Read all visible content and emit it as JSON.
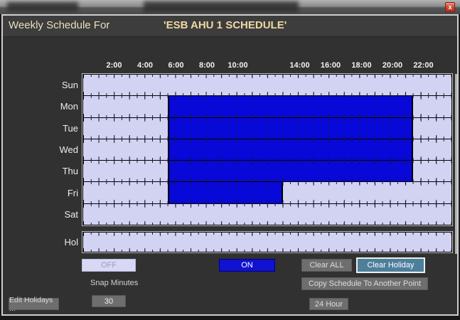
{
  "window": {
    "close_button": "x"
  },
  "header": {
    "label": "Weekly Schedule For",
    "schedule_name": "'ESB AHU 1 SCHEDULE'"
  },
  "chart_data": {
    "type": "weekly-on-off-schedule",
    "title": "'ESB AHU 1 SCHEDULE'",
    "x_axis": {
      "unit": "hour",
      "range_hours": [
        0,
        24
      ],
      "tick_every_minutes": 30,
      "labels": [
        {
          "hour": 2,
          "text": "2:00"
        },
        {
          "hour": 4,
          "text": "4:00"
        },
        {
          "hour": 6,
          "text": "6:00"
        },
        {
          "hour": 8,
          "text": "8:00"
        },
        {
          "hour": 10,
          "text": "10:00"
        },
        {
          "hour": 14,
          "text": "14:00"
        },
        {
          "hour": 16,
          "text": "16:00"
        },
        {
          "hour": 18,
          "text": "18:00"
        },
        {
          "hour": 20,
          "text": "20:00"
        },
        {
          "hour": 22,
          "text": "22:00"
        }
      ]
    },
    "days": [
      "Sun",
      "Mon",
      "Tue",
      "Wed",
      "Thu",
      "Fri",
      "Sat"
    ],
    "holiday_label": "Hol",
    "on_periods": [
      {
        "day": "Mon",
        "start": "5:30",
        "end": "21:30"
      },
      {
        "day": "Tue",
        "start": "5:30",
        "end": "21:30"
      },
      {
        "day": "Wed",
        "start": "5:30",
        "end": "21:30"
      },
      {
        "day": "Thu",
        "start": "5:30",
        "end": "21:30"
      },
      {
        "day": "Fri",
        "start": "5:30",
        "end": "13:00"
      }
    ],
    "colors": {
      "off_fill": "#d2d2f2",
      "on_fill": "#0808d8",
      "tick": "#16163a"
    }
  },
  "legend": {
    "off": "OFF",
    "on": "ON"
  },
  "buttons": {
    "clear_all": "Clear ALL",
    "clear_holiday": "Clear Holiday",
    "copy_schedule": "Copy Schedule To Another Point",
    "edit_holidays": "Edit Holidays ...",
    "hour_24": "24 Hour"
  },
  "snap": {
    "label": "Snap Minutes",
    "value": "30"
  }
}
